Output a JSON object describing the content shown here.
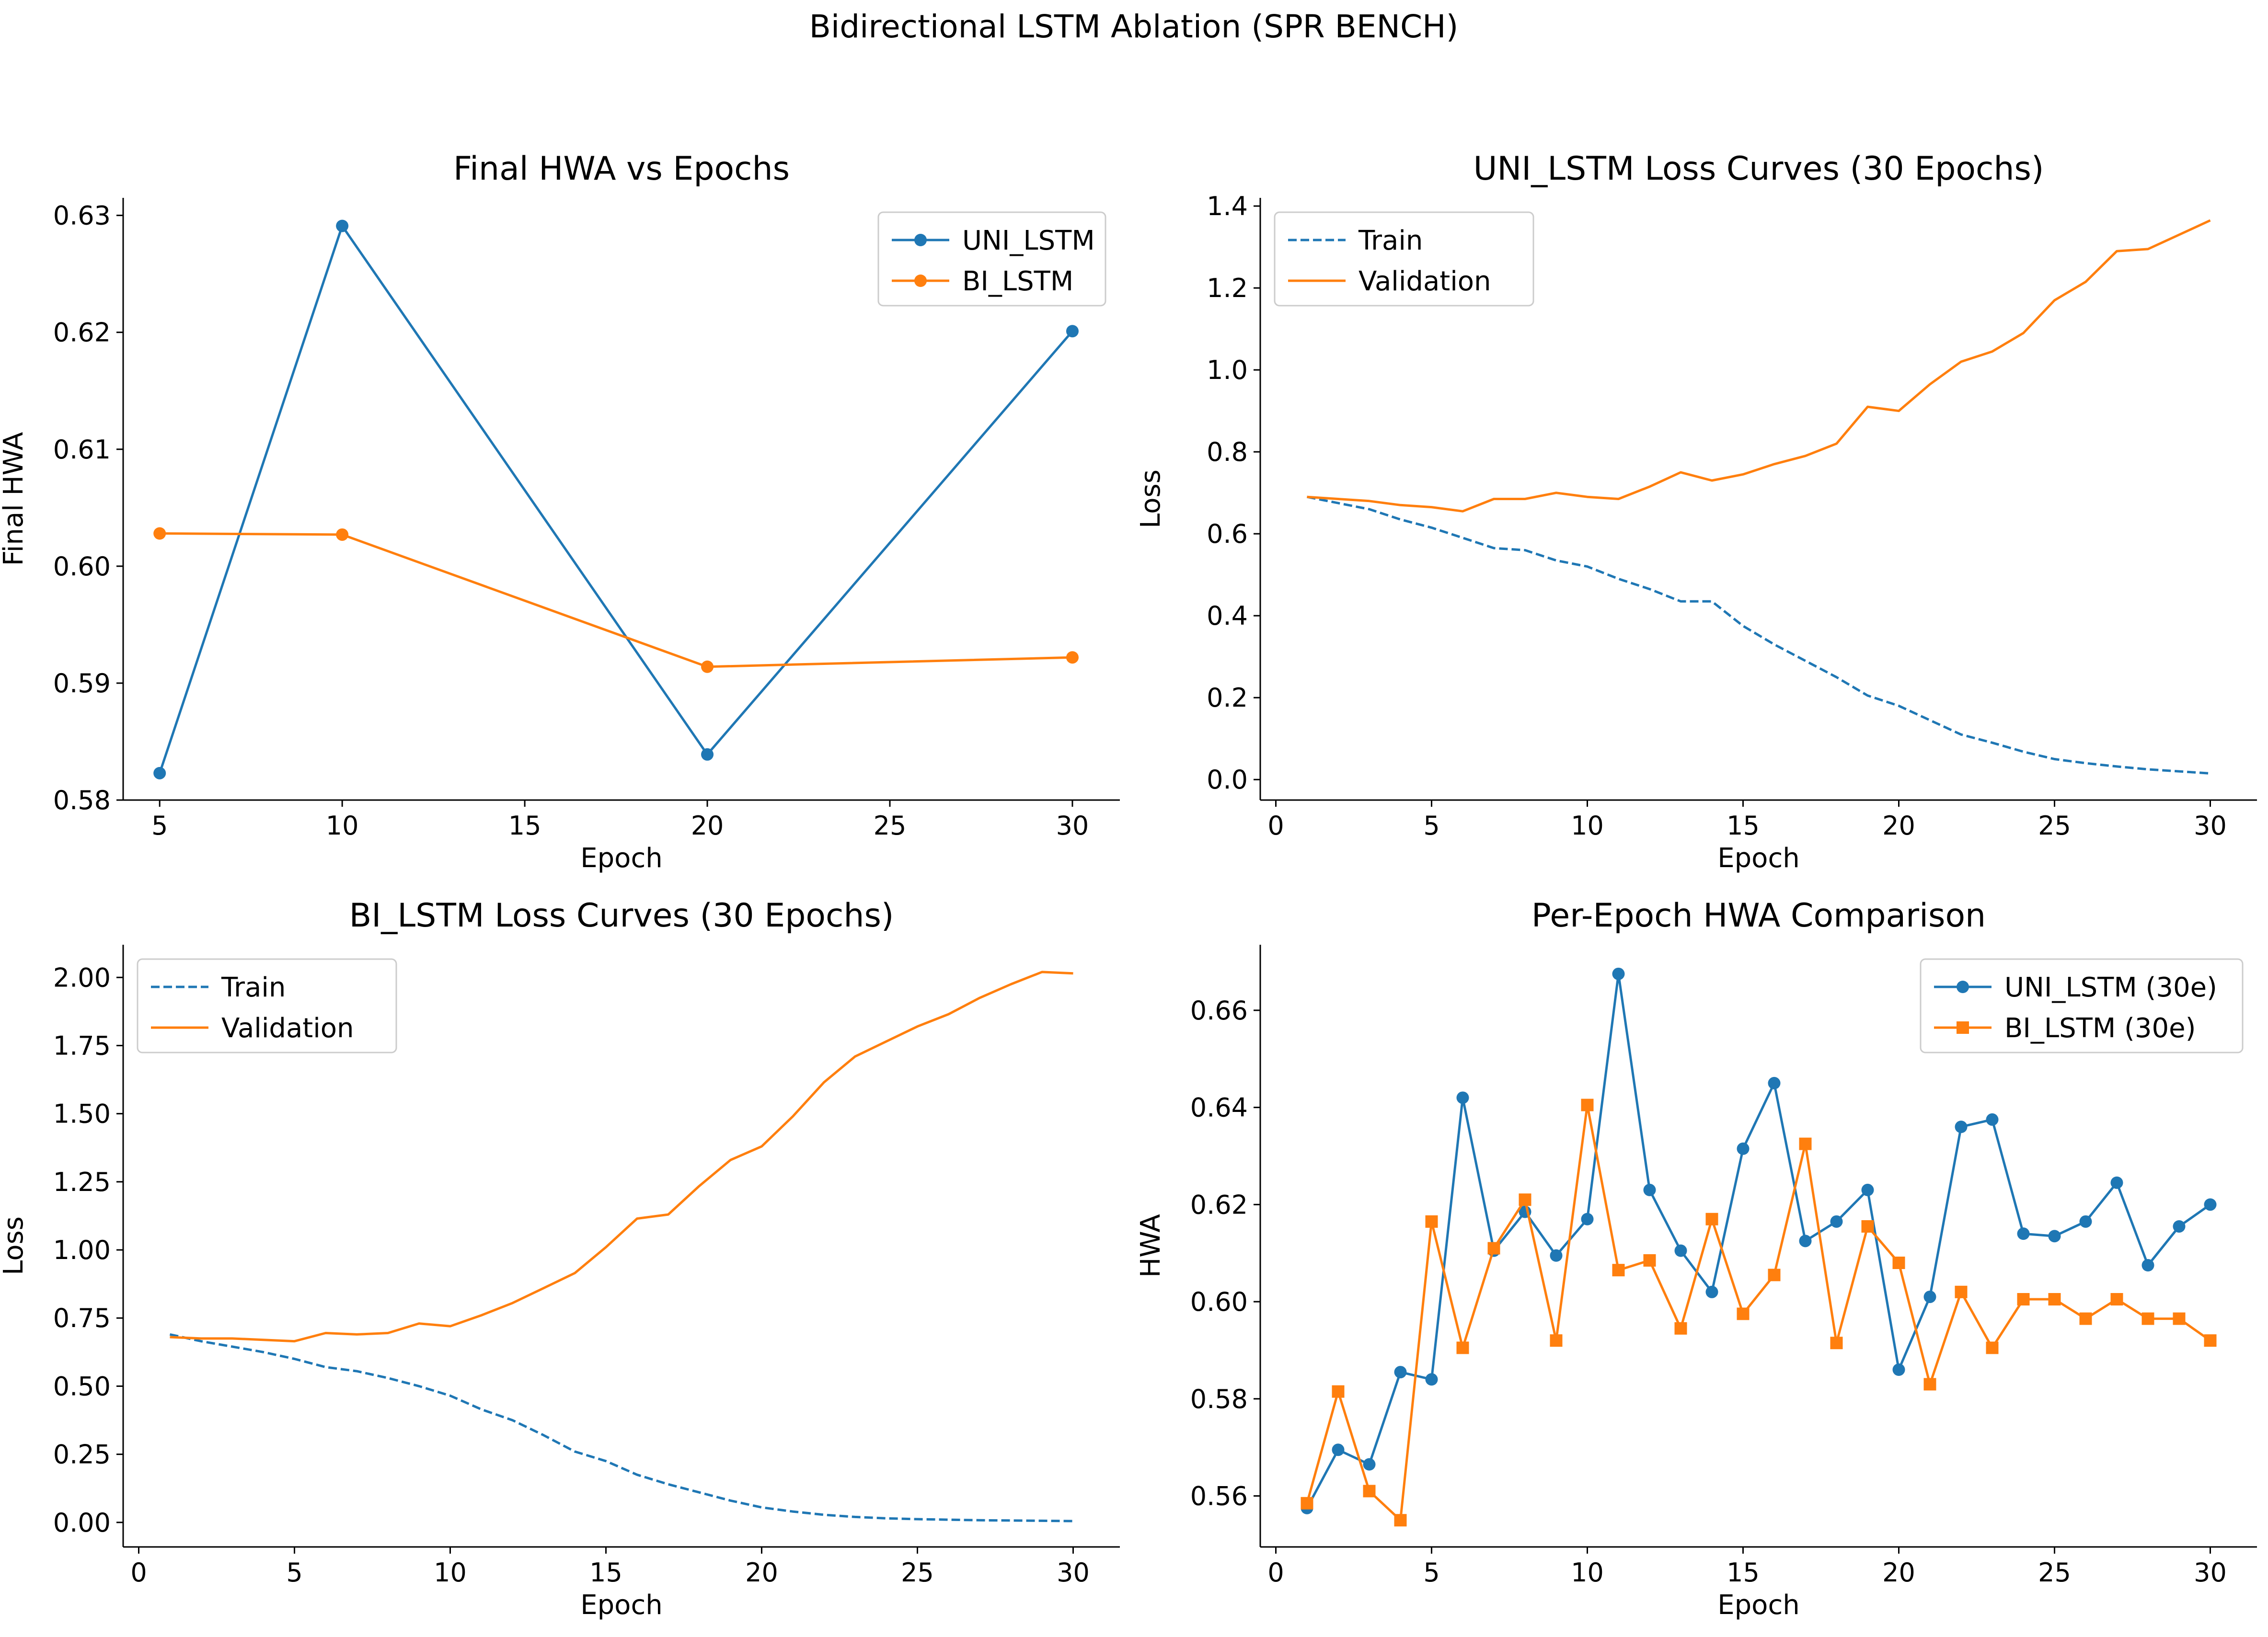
{
  "figure": {
    "suptitle": "Bidirectional LSTM Ablation (SPR BENCH)"
  },
  "colors": {
    "uni": "#1f77b4",
    "bi": "#ff7f0e"
  },
  "chart_data": [
    {
      "type": "line",
      "title": "Final HWA vs Epochs",
      "xlabel": "Epoch",
      "ylabel": "Final HWA",
      "xlim": [
        4,
        31.3
      ],
      "ylim": [
        0.58,
        0.6315
      ],
      "xticks": [
        5,
        10,
        15,
        20,
        25,
        30
      ],
      "xtick_labels": [
        "5",
        "10",
        "15",
        "20",
        "25",
        "30"
      ],
      "yticks": [
        0.58,
        0.59,
        0.6,
        0.61,
        0.62,
        0.63
      ],
      "ytick_labels": [
        "0.58",
        "0.59",
        "0.60",
        "0.61",
        "0.62",
        "0.63"
      ],
      "legend": "top-right",
      "series": [
        {
          "name": "UNI_LSTM",
          "color": "#1f77b4",
          "marker": "circle",
          "dash": "solid",
          "x": [
            5,
            10,
            20,
            30
          ],
          "y": [
            0.5823,
            0.6291,
            0.5839,
            0.6201
          ]
        },
        {
          "name": "BI_LSTM",
          "color": "#ff7f0e",
          "marker": "circle",
          "dash": "solid",
          "x": [
            5,
            10,
            20,
            30
          ],
          "y": [
            0.6028,
            0.6027,
            0.5914,
            0.5922
          ]
        }
      ]
    },
    {
      "type": "line",
      "title": "UNI_LSTM Loss Curves (30 Epochs)",
      "xlabel": "Epoch",
      "ylabel": "Loss",
      "xlim": [
        -0.5,
        31.5
      ],
      "ylim": [
        -0.05,
        1.42
      ],
      "xticks": [
        0,
        5,
        10,
        15,
        20,
        25,
        30
      ],
      "xtick_labels": [
        "0",
        "5",
        "10",
        "15",
        "20",
        "25",
        "30"
      ],
      "yticks": [
        0.0,
        0.2,
        0.4,
        0.6,
        0.8,
        1.0,
        1.2,
        1.4
      ],
      "ytick_labels": [
        "0.0",
        "0.2",
        "0.4",
        "0.6",
        "0.8",
        "1.0",
        "1.2",
        "1.4"
      ],
      "legend": "top-left",
      "series": [
        {
          "name": "Train",
          "color": "#1f77b4",
          "marker": "none",
          "dash": "dashed",
          "x": [
            1,
            2,
            3,
            4,
            5,
            6,
            7,
            8,
            9,
            10,
            11,
            12,
            13,
            14,
            15,
            16,
            17,
            18,
            19,
            20,
            21,
            22,
            23,
            24,
            25,
            26,
            27,
            28,
            29,
            30
          ],
          "y": [
            0.69,
            0.675,
            0.66,
            0.635,
            0.615,
            0.59,
            0.565,
            0.56,
            0.535,
            0.52,
            0.49,
            0.465,
            0.435,
            0.435,
            0.375,
            0.33,
            0.29,
            0.25,
            0.205,
            0.18,
            0.145,
            0.11,
            0.09,
            0.068,
            0.05,
            0.04,
            0.032,
            0.025,
            0.02,
            0.015
          ]
        },
        {
          "name": "Validation",
          "color": "#ff7f0e",
          "marker": "none",
          "dash": "solid",
          "x": [
            1,
            2,
            3,
            4,
            5,
            6,
            7,
            8,
            9,
            10,
            11,
            12,
            13,
            14,
            15,
            16,
            17,
            18,
            19,
            20,
            21,
            22,
            23,
            24,
            25,
            26,
            27,
            28,
            29,
            30
          ],
          "y": [
            0.69,
            0.685,
            0.68,
            0.67,
            0.665,
            0.655,
            0.685,
            0.685,
            0.7,
            0.69,
            0.685,
            0.715,
            0.75,
            0.73,
            0.745,
            0.77,
            0.79,
            0.82,
            0.91,
            0.9,
            0.965,
            1.02,
            1.045,
            1.09,
            1.17,
            1.215,
            1.29,
            1.295,
            1.33,
            1.365
          ]
        }
      ]
    },
    {
      "type": "line",
      "title": "BI_LSTM Loss Curves (30 Epochs)",
      "xlabel": "Epoch",
      "ylabel": "Loss",
      "xlim": [
        -0.5,
        31.5
      ],
      "ylim": [
        -0.09,
        2.12
      ],
      "xticks": [
        0,
        5,
        10,
        15,
        20,
        25,
        30
      ],
      "xtick_labels": [
        "0",
        "5",
        "10",
        "15",
        "20",
        "25",
        "30"
      ],
      "yticks": [
        0.0,
        0.25,
        0.5,
        0.75,
        1.0,
        1.25,
        1.5,
        1.75,
        2.0
      ],
      "ytick_labels": [
        "0.00",
        "0.25",
        "0.50",
        "0.75",
        "1.00",
        "1.25",
        "1.50",
        "1.75",
        "2.00"
      ],
      "legend": "top-left",
      "series": [
        {
          "name": "Train",
          "color": "#1f77b4",
          "marker": "none",
          "dash": "dashed",
          "x": [
            1,
            2,
            3,
            4,
            5,
            6,
            7,
            8,
            9,
            10,
            11,
            12,
            13,
            14,
            15,
            16,
            17,
            18,
            19,
            20,
            21,
            22,
            23,
            24,
            25,
            26,
            27,
            28,
            29,
            30
          ],
          "y": [
            0.69,
            0.665,
            0.645,
            0.625,
            0.6,
            0.57,
            0.555,
            0.53,
            0.5,
            0.465,
            0.415,
            0.375,
            0.32,
            0.26,
            0.225,
            0.175,
            0.14,
            0.11,
            0.08,
            0.055,
            0.04,
            0.028,
            0.02,
            0.015,
            0.012,
            0.01,
            0.008,
            0.007,
            0.006,
            0.005
          ]
        },
        {
          "name": "Validation",
          "color": "#ff7f0e",
          "marker": "none",
          "dash": "solid",
          "x": [
            1,
            2,
            3,
            4,
            5,
            6,
            7,
            8,
            9,
            10,
            11,
            12,
            13,
            14,
            15,
            16,
            17,
            18,
            19,
            20,
            21,
            22,
            23,
            24,
            25,
            26,
            27,
            28,
            29,
            30
          ],
          "y": [
            0.68,
            0.675,
            0.675,
            0.67,
            0.665,
            0.695,
            0.69,
            0.695,
            0.73,
            0.72,
            0.76,
            0.805,
            0.86,
            0.915,
            1.01,
            1.115,
            1.13,
            1.235,
            1.33,
            1.38,
            1.49,
            1.615,
            1.71,
            1.765,
            1.82,
            1.865,
            1.925,
            1.975,
            2.02,
            2.015
          ]
        }
      ]
    },
    {
      "type": "line",
      "title": "Per-Epoch HWA Comparison",
      "xlabel": "Epoch",
      "ylabel": "HWA",
      "xlim": [
        -0.5,
        31.5
      ],
      "ylim": [
        0.5495,
        0.6735
      ],
      "xticks": [
        0,
        5,
        10,
        15,
        20,
        25,
        30
      ],
      "xtick_labels": [
        "0",
        "5",
        "10",
        "15",
        "20",
        "25",
        "30"
      ],
      "yticks": [
        0.56,
        0.58,
        0.6,
        0.62,
        0.64,
        0.66
      ],
      "ytick_labels": [
        "0.56",
        "0.58",
        "0.60",
        "0.62",
        "0.64",
        "0.66"
      ],
      "legend": "top-right",
      "series": [
        {
          "name": "UNI_LSTM (30e)",
          "color": "#1f77b4",
          "marker": "circle",
          "dash": "solid",
          "x": [
            1,
            2,
            3,
            4,
            5,
            6,
            7,
            8,
            9,
            10,
            11,
            12,
            13,
            14,
            15,
            16,
            17,
            18,
            19,
            20,
            21,
            22,
            23,
            24,
            25,
            26,
            27,
            28,
            29,
            30
          ],
          "y": [
            0.5575,
            0.5695,
            0.5665,
            0.5855,
            0.584,
            0.642,
            0.6105,
            0.6185,
            0.6095,
            0.617,
            0.6675,
            0.623,
            0.6105,
            0.602,
            0.6315,
            0.645,
            0.6125,
            0.6165,
            0.623,
            0.586,
            0.601,
            0.636,
            0.6375,
            0.614,
            0.6135,
            0.6165,
            0.6245,
            0.6075,
            0.6155,
            0.62
          ]
        },
        {
          "name": "BI_LSTM (30e)",
          "color": "#ff7f0e",
          "marker": "square",
          "dash": "solid",
          "x": [
            1,
            2,
            3,
            4,
            5,
            6,
            7,
            8,
            9,
            10,
            11,
            12,
            13,
            14,
            15,
            16,
            17,
            18,
            19,
            20,
            21,
            22,
            23,
            24,
            25,
            26,
            27,
            28,
            29,
            30
          ],
          "y": [
            0.5585,
            0.5815,
            0.561,
            0.555,
            0.6165,
            0.5905,
            0.611,
            0.621,
            0.592,
            0.6405,
            0.6065,
            0.6085,
            0.5945,
            0.617,
            0.5975,
            0.6055,
            0.6325,
            0.5915,
            0.6155,
            0.608,
            0.583,
            0.602,
            0.5905,
            0.6005,
            0.6005,
            0.5965,
            0.6005,
            0.5965,
            0.5965,
            0.592
          ]
        }
      ]
    }
  ]
}
